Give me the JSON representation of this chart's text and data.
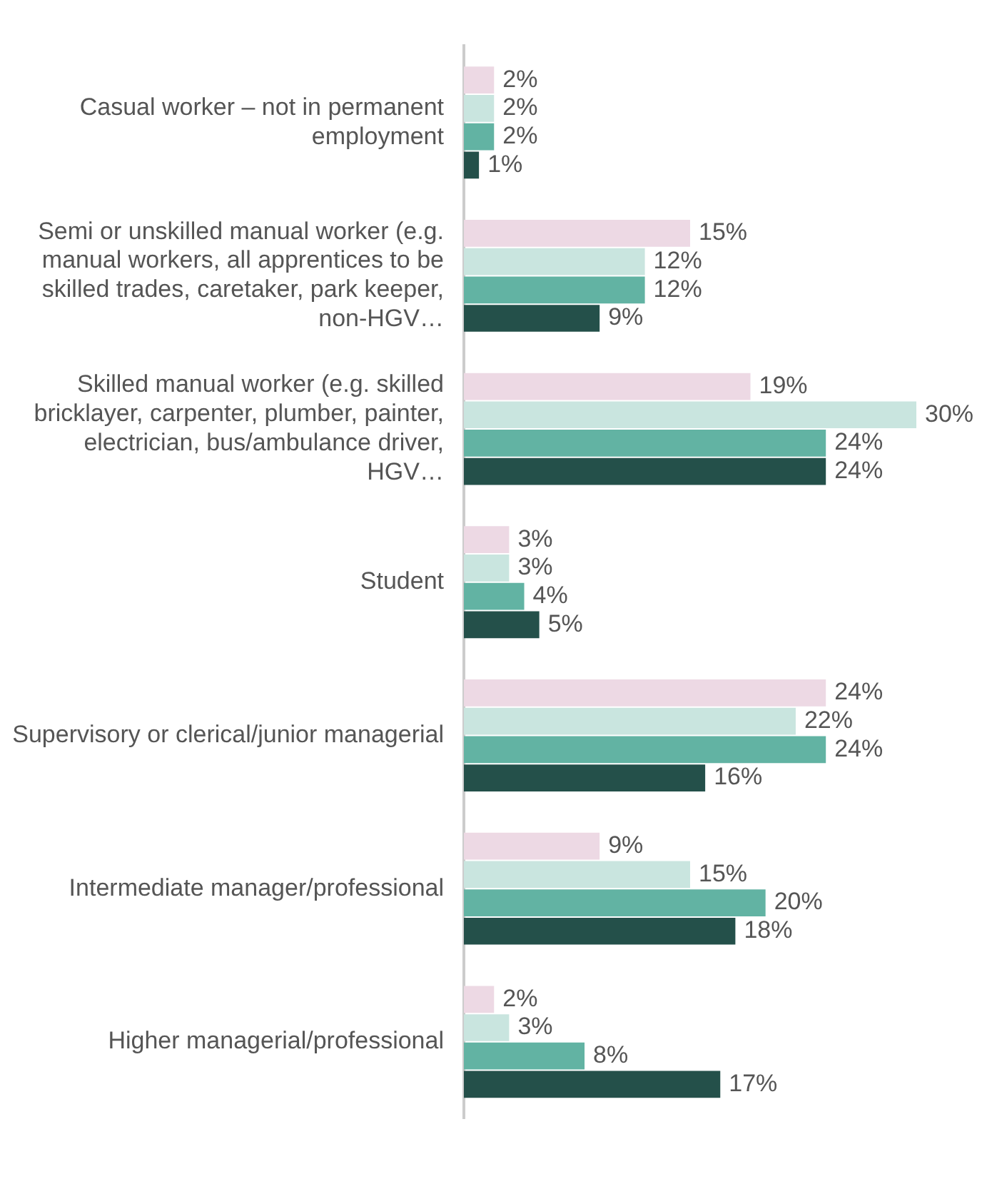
{
  "chart_data": {
    "type": "bar",
    "orientation": "horizontal",
    "categories": [
      "Casual worker – not in permanent employment",
      "Semi or unskilled manual worker (e.g. manual workers, all apprentices to be skilled trades, caretaker, park keeper, non-HGV…",
      "Skilled manual worker (e.g. skilled bricklayer, carpenter, plumber, painter, electrician, bus/ambulance driver, HGV…",
      "Student",
      "Supervisory or clerical/junior managerial",
      "Intermediate manager/professional",
      "Higher managerial/professional"
    ],
    "series": [
      {
        "color": "#edd9e4",
        "values": [
          2,
          15,
          19,
          3,
          24,
          9,
          2
        ],
        "value_labels": [
          "2%",
          "15%",
          "19%",
          "3%",
          "24%",
          "9%",
          "2%"
        ]
      },
      {
        "color": "#c9e5df",
        "values": [
          2,
          12,
          30,
          3,
          22,
          15,
          3
        ],
        "value_labels": [
          "2%",
          "12%",
          "30%",
          "3%",
          "22%",
          "15%",
          "3%"
        ]
      },
      {
        "color": "#62b3a3",
        "values": [
          2,
          12,
          24,
          4,
          24,
          20,
          8
        ],
        "value_labels": [
          "2%",
          "12%",
          "24%",
          "4%",
          "24%",
          "20%",
          "8%"
        ]
      },
      {
        "color": "#24504a",
        "values": [
          1,
          9,
          24,
          5,
          16,
          18,
          17
        ],
        "value_labels": [
          "1%",
          "9%",
          "24%",
          "5%",
          "16%",
          "18%",
          "17%"
        ]
      }
    ],
    "tick_labels": "y",
    "grid": false,
    "legend": false
  }
}
